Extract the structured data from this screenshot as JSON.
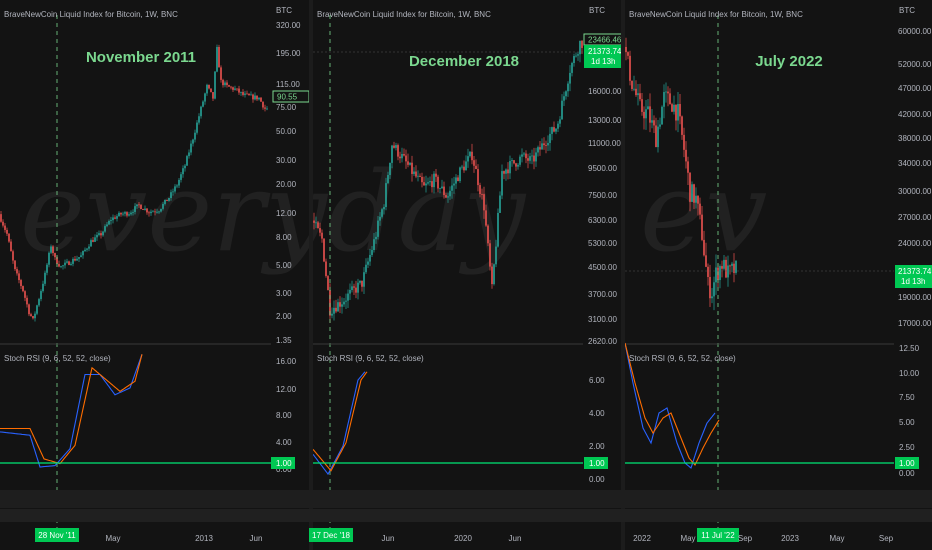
{
  "colors": {
    "bg": "#131313",
    "up": "#26a69a",
    "down": "#ef5350",
    "k_line": "#2962ff",
    "d_line": "#ff6d00",
    "level_line": "#00e676",
    "text": "#b2b5be",
    "highlight": "#7bd88f"
  },
  "panels": [
    {
      "header": "BraveNewCoin Liquid Index for Bitcoin, 1W, BNC",
      "currency": "BTC",
      "title": "November 2011",
      "price_ticks": [
        "320.00",
        "195.00",
        "115.00",
        "75.00",
        "50.00",
        "30.00",
        "20.00",
        "12.00",
        "8.00",
        "5.00",
        "3.00",
        "2.00",
        "1.35"
      ],
      "price_badge": "90.55",
      "rsi_label": "Stoch RSI (9, 6, 52, 52, close)",
      "rsi_ticks": [
        "16.00",
        "12.00",
        "8.00",
        "4.00",
        "0.00"
      ],
      "rsi_level_label": "1.00",
      "date_badge": "28 Nov '11",
      "x_ticks": [
        "May",
        "2013",
        "Jun"
      ]
    },
    {
      "header": "BraveNewCoin Liquid Index for Bitcoin, 1W, BNC",
      "currency": "BTC",
      "title": "December 2018",
      "price_ticks": [
        "16000.00",
        "13000.00",
        "11000.00",
        "9500.00",
        "7500.00",
        "6300.00",
        "5300.00",
        "4500.00",
        "3700.00",
        "3100.00",
        "2620.00"
      ],
      "price_badge_top": "23466.46",
      "price_badge": "21373.74",
      "price_badge_sub": "1d 13h",
      "rsi_label": "Stoch RSI (9, 6, 52, 52, close)",
      "rsi_ticks": [
        "6.00",
        "4.00",
        "2.00",
        "0.00"
      ],
      "rsi_level_label": "1.00",
      "date_badge": "17 Dec '18",
      "x_ticks": [
        "Jun",
        "2020",
        "Jun"
      ]
    },
    {
      "header": "BraveNewCoin Liquid Index for Bitcoin, 1W, BNC",
      "currency": "BTC",
      "title": "July 2022",
      "price_ticks": [
        "60000.00",
        "52000.00",
        "47000.00",
        "42000.00",
        "38000.00",
        "34000.00",
        "30000.00",
        "27000.00",
        "24000.00",
        "19000.00",
        "17000.00"
      ],
      "price_badge": "21373.74",
      "price_badge_sub": "1d 13h",
      "rsi_label": "Stoch RSI (9, 6, 52, 52, close)",
      "rsi_ticks": [
        "12.50",
        "10.00",
        "7.50",
        "5.00",
        "2.50",
        "0.00"
      ],
      "rsi_level_label": "1.00",
      "date_badge": "11 Jul '22",
      "x_ticks": [
        "2022",
        "May",
        "Sep",
        "2023",
        "May",
        "Sep"
      ]
    }
  ],
  "chart_data": [
    {
      "type": "candlestick",
      "title": "November 2011",
      "scale": "log",
      "ylim": [
        1.35,
        320
      ],
      "series": [
        {
          "name": "BTC price (weekly)",
          "anchors": [
            [
              0,
              12
            ],
            [
              8,
              8.5
            ],
            [
              16,
              4.5
            ],
            [
              24,
              3.2
            ],
            [
              30,
              2.2
            ],
            [
              34,
              1.9
            ],
            [
              40,
              2.8
            ],
            [
              46,
              4.2
            ],
            [
              52,
              7
            ],
            [
              56,
              5.5
            ],
            [
              62,
              4.8
            ],
            [
              72,
              5.3
            ],
            [
              82,
              5.8
            ],
            [
              92,
              7.5
            ],
            [
              102,
              8.5
            ],
            [
              112,
              11
            ],
            [
              122,
              12
            ],
            [
              130,
              12.3
            ],
            [
              140,
              14
            ],
            [
              150,
              12.5
            ],
            [
              160,
              13
            ],
            [
              170,
              16
            ],
            [
              178,
              20
            ],
            [
              186,
              28
            ],
            [
              194,
              45
            ],
            [
              202,
              75
            ],
            [
              208,
              110
            ],
            [
              214,
              90
            ],
            [
              218,
              210
            ],
            [
              222,
              120
            ],
            [
              228,
              110
            ],
            [
              236,
              105
            ],
            [
              244,
              95
            ],
            [
              252,
              92
            ],
            [
              260,
              90
            ],
            [
              266,
              75
            ]
          ]
        },
        {
          "name": "Stoch RSI %K",
          "anchors": [
            [
              0,
              5.5
            ],
            [
              30,
              5
            ],
            [
              40,
              0.3
            ],
            [
              55,
              0.5
            ],
            [
              70,
              3
            ],
            [
              85,
              14
            ],
            [
              100,
              14
            ],
            [
              115,
              11
            ],
            [
              130,
              12
            ],
            [
              142,
              17
            ]
          ]
        },
        {
          "name": "Stoch RSI %D",
          "anchors": [
            [
              0,
              6
            ],
            [
              30,
              6
            ],
            [
              44,
              1.5
            ],
            [
              60,
              0.8
            ],
            [
              75,
              3.5
            ],
            [
              92,
              15
            ],
            [
              108,
              13
            ],
            [
              120,
              11.5
            ],
            [
              135,
              13
            ],
            [
              142,
              17
            ]
          ]
        }
      ]
    },
    {
      "type": "candlestick",
      "title": "December 2018",
      "scale": "log",
      "ylim": [
        2620,
        23466
      ],
      "series": [
        {
          "name": "BTC price (weekly)",
          "anchors": [
            [
              0,
              6300
            ],
            [
              10,
              5500
            ],
            [
              18,
              3300
            ],
            [
              30,
              3500
            ],
            [
              50,
              4000
            ],
            [
              62,
              5400
            ],
            [
              72,
              7200
            ],
            [
              80,
              11000
            ],
            [
              90,
              10000
            ],
            [
              100,
              9000
            ],
            [
              112,
              8000
            ],
            [
              122,
              8500
            ],
            [
              135,
              7500
            ],
            [
              148,
              9000
            ],
            [
              160,
              10200
            ],
            [
              172,
              7000
            ],
            [
              180,
              3800
            ],
            [
              190,
              9000
            ],
            [
              210,
              10000
            ],
            [
              220,
              9700
            ],
            [
              235,
              11500
            ],
            [
              245,
              12500
            ],
            [
              258,
              19000
            ],
            [
              268,
              23000
            ]
          ]
        },
        {
          "name": "Stoch RSI %K",
          "anchors": [
            [
              0,
              1.5
            ],
            [
              15,
              0.3
            ],
            [
              30,
              2
            ],
            [
              45,
              6
            ],
            [
              52,
              6.5
            ]
          ]
        },
        {
          "name": "Stoch RSI %D",
          "anchors": [
            [
              0,
              1.8
            ],
            [
              18,
              0.5
            ],
            [
              33,
              2.2
            ],
            [
              48,
              6
            ],
            [
              54,
              6.5
            ]
          ]
        }
      ]
    },
    {
      "type": "candlestick",
      "title": "July 2022",
      "scale": "log",
      "ylim": [
        17000,
        60000
      ],
      "series": [
        {
          "name": "BTC price (weekly)",
          "anchors": [
            [
              0,
              56000
            ],
            [
              8,
              48000
            ],
            [
              16,
              43000
            ],
            [
              24,
              42000
            ],
            [
              32,
              38000
            ],
            [
              40,
              45000
            ],
            [
              48,
              44000
            ],
            [
              54,
              42000
            ],
            [
              60,
              36000
            ],
            [
              66,
              30000
            ],
            [
              72,
              29000
            ],
            [
              78,
              25000
            ],
            [
              84,
              20000
            ],
            [
              88,
              19500
            ],
            [
              92,
              21000
            ],
            [
              98,
              22000
            ],
            [
              104,
              21000
            ],
            [
              110,
              21373
            ]
          ]
        },
        {
          "name": "Stoch RSI %K",
          "anchors": [
            [
              0,
              13
            ],
            [
              8,
              9
            ],
            [
              18,
              4.5
            ],
            [
              26,
              3
            ],
            [
              34,
              6
            ],
            [
              42,
              6.5
            ],
            [
              52,
              3
            ],
            [
              60,
              1
            ],
            [
              66,
              0.5
            ],
            [
              74,
              3
            ],
            [
              82,
              5
            ],
            [
              90,
              6
            ]
          ]
        },
        {
          "name": "Stoch RSI %D",
          "anchors": [
            [
              0,
              13
            ],
            [
              10,
              9
            ],
            [
              20,
              5.5
            ],
            [
              28,
              4
            ],
            [
              38,
              5.5
            ],
            [
              46,
              6
            ],
            [
              56,
              3.5
            ],
            [
              64,
              1.5
            ],
            [
              70,
              0.8
            ],
            [
              78,
              2.5
            ],
            [
              86,
              4
            ],
            [
              94,
              5.3
            ]
          ]
        }
      ]
    }
  ]
}
